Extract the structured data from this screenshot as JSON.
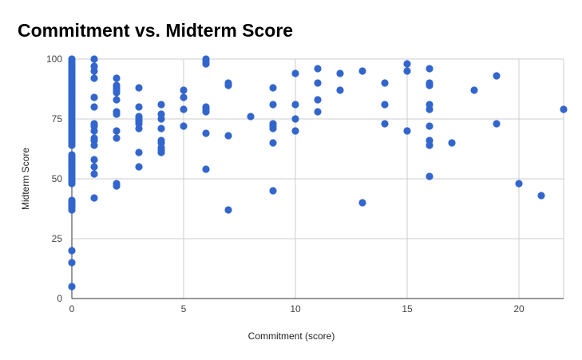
{
  "chart_data": {
    "type": "scatter",
    "title": "Commitment vs. Midterm Score",
    "xlabel": "Commitment (score)",
    "ylabel": "Midterm Score",
    "xlim": [
      0,
      22
    ],
    "ylim": [
      0,
      100
    ],
    "xticks": [
      0,
      5,
      10,
      15,
      20
    ],
    "yticks": [
      0,
      25,
      50,
      75,
      100
    ],
    "grid": true,
    "legend": "none",
    "color": "#3366cc",
    "points": [
      [
        0,
        100
      ],
      [
        0,
        99
      ],
      [
        0,
        98
      ],
      [
        0,
        97
      ],
      [
        0,
        96
      ],
      [
        0,
        95
      ],
      [
        0,
        94
      ],
      [
        0,
        93
      ],
      [
        0,
        92
      ],
      [
        0,
        91
      ],
      [
        0,
        90
      ],
      [
        0,
        89
      ],
      [
        0,
        88
      ],
      [
        0,
        87
      ],
      [
        0,
        86
      ],
      [
        0,
        85
      ],
      [
        0,
        84
      ],
      [
        0,
        83
      ],
      [
        0,
        82
      ],
      [
        0,
        81
      ],
      [
        0,
        80
      ],
      [
        0,
        79
      ],
      [
        0,
        78
      ],
      [
        0,
        77
      ],
      [
        0,
        76
      ],
      [
        0,
        75
      ],
      [
        0,
        74
      ],
      [
        0,
        73
      ],
      [
        0,
        72
      ],
      [
        0,
        71
      ],
      [
        0,
        70
      ],
      [
        0,
        69
      ],
      [
        0,
        68
      ],
      [
        0,
        67
      ],
      [
        0,
        66
      ],
      [
        0,
        65
      ],
      [
        0,
        64
      ],
      [
        0,
        60
      ],
      [
        0,
        59
      ],
      [
        0,
        58
      ],
      [
        0,
        57
      ],
      [
        0,
        56
      ],
      [
        0,
        55
      ],
      [
        0,
        54
      ],
      [
        0,
        53
      ],
      [
        0,
        52
      ],
      [
        0,
        51
      ],
      [
        0,
        50
      ],
      [
        0,
        49
      ],
      [
        0,
        48
      ],
      [
        0,
        41
      ],
      [
        0,
        40
      ],
      [
        0,
        39
      ],
      [
        0,
        38
      ],
      [
        0,
        37
      ],
      [
        0,
        20
      ],
      [
        0,
        15
      ],
      [
        0,
        5
      ],
      [
        1,
        100
      ],
      [
        1,
        97
      ],
      [
        1,
        95
      ],
      [
        1,
        92
      ],
      [
        1,
        84
      ],
      [
        1,
        80
      ],
      [
        1,
        73
      ],
      [
        1,
        72
      ],
      [
        1,
        70
      ],
      [
        1,
        67
      ],
      [
        1,
        66
      ],
      [
        1,
        64
      ],
      [
        1,
        58
      ],
      [
        1,
        55
      ],
      [
        1,
        52
      ],
      [
        1,
        42
      ],
      [
        2,
        92
      ],
      [
        2,
        89
      ],
      [
        2,
        88
      ],
      [
        2,
        87
      ],
      [
        2,
        86
      ],
      [
        2,
        83
      ],
      [
        2,
        78
      ],
      [
        2,
        77
      ],
      [
        2,
        70
      ],
      [
        2,
        67
      ],
      [
        2,
        48
      ],
      [
        2,
        47
      ],
      [
        3,
        88
      ],
      [
        3,
        80
      ],
      [
        3,
        76
      ],
      [
        3,
        75
      ],
      [
        3,
        74
      ],
      [
        3,
        73
      ],
      [
        3,
        71
      ],
      [
        3,
        61
      ],
      [
        3,
        55
      ],
      [
        4,
        81
      ],
      [
        4,
        77
      ],
      [
        4,
        75
      ],
      [
        4,
        71
      ],
      [
        4,
        66
      ],
      [
        4,
        65
      ],
      [
        4,
        63
      ],
      [
        4,
        62
      ],
      [
        4,
        61
      ],
      [
        5,
        87
      ],
      [
        5,
        84
      ],
      [
        5,
        79
      ],
      [
        5,
        72
      ],
      [
        6,
        100
      ],
      [
        6,
        99
      ],
      [
        6,
        98
      ],
      [
        6,
        80
      ],
      [
        6,
        79
      ],
      [
        6,
        78
      ],
      [
        6,
        69
      ],
      [
        6,
        54
      ],
      [
        7,
        90
      ],
      [
        7,
        89
      ],
      [
        7,
        68
      ],
      [
        7,
        37
      ],
      [
        8,
        76
      ],
      [
        9,
        88
      ],
      [
        9,
        81
      ],
      [
        9,
        73
      ],
      [
        9,
        72
      ],
      [
        9,
        71
      ],
      [
        9,
        65
      ],
      [
        9,
        45
      ],
      [
        10,
        94
      ],
      [
        10,
        81
      ],
      [
        10,
        75
      ],
      [
        10,
        70
      ],
      [
        11,
        96
      ],
      [
        11,
        90
      ],
      [
        11,
        83
      ],
      [
        11,
        78
      ],
      [
        12,
        94
      ],
      [
        12,
        87
      ],
      [
        13,
        95
      ],
      [
        13,
        40
      ],
      [
        14,
        90
      ],
      [
        14,
        81
      ],
      [
        14,
        73
      ],
      [
        15,
        98
      ],
      [
        15,
        95
      ],
      [
        15,
        70
      ],
      [
        16,
        96
      ],
      [
        16,
        90
      ],
      [
        16,
        89
      ],
      [
        16,
        81
      ],
      [
        16,
        79
      ],
      [
        16,
        72
      ],
      [
        16,
        66
      ],
      [
        16,
        64
      ],
      [
        16,
        51
      ],
      [
        17,
        65
      ],
      [
        18,
        87
      ],
      [
        19,
        93
      ],
      [
        19,
        73
      ],
      [
        20,
        48
      ],
      [
        21,
        43
      ],
      [
        22,
        79
      ]
    ]
  }
}
